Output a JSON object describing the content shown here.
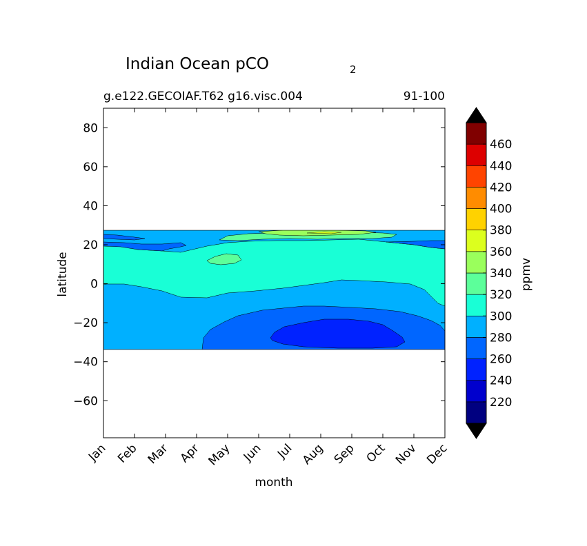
{
  "chart_data": {
    "type": "heatmap",
    "title_main": "Indian Ocean pCO",
    "title_sub": "2",
    "subtitle_left": "g.e122.GECOIAF.T62 g16.visc.004",
    "subtitle_right": "91-100",
    "xlabel": "month",
    "ylabel": "latitude",
    "x_categories": [
      "Jan",
      "Feb",
      "Mar",
      "Apr",
      "May",
      "Jun",
      "Jul",
      "Aug",
      "Sep",
      "Oct",
      "Nov",
      "Dec"
    ],
    "y_ticks": [
      80,
      60,
      40,
      20,
      0,
      -20,
      -40,
      -60
    ],
    "y_tick_labels": [
      "80",
      "60",
      "40",
      "20",
      "0",
      "−20",
      "−40",
      "−60"
    ],
    "ylim": [
      -79,
      90
    ],
    "data_lat_range": [
      -34,
      27
    ],
    "colorbar": {
      "label": "ppmv",
      "tick_values": [
        220,
        240,
        260,
        280,
        300,
        320,
        340,
        360,
        380,
        400,
        420,
        440,
        460
      ],
      "tick_labels": [
        "220",
        "240",
        "260",
        "280",
        "300",
        "320",
        "340",
        "360",
        "380",
        "400",
        "420",
        "440",
        "460"
      ],
      "bins": [
        {
          "lo": 200,
          "hi": 220,
          "color": "#000080"
        },
        {
          "lo": 220,
          "hi": 240,
          "color": "#0000cd"
        },
        {
          "lo": 240,
          "hi": 260,
          "color": "#0022ff"
        },
        {
          "lo": 260,
          "hi": 280,
          "color": "#0066ff"
        },
        {
          "lo": 280,
          "hi": 300,
          "color": "#00b0ff"
        },
        {
          "lo": 300,
          "hi": 320,
          "color": "#19ffd6"
        },
        {
          "lo": 320,
          "hi": 340,
          "color": "#5cff9a"
        },
        {
          "lo": 340,
          "hi": 360,
          "color": "#9aff5c"
        },
        {
          "lo": 360,
          "hi": 380,
          "color": "#dcff1e"
        },
        {
          "lo": 380,
          "hi": 400,
          "color": "#ffd200"
        },
        {
          "lo": 400,
          "hi": 420,
          "color": "#ff8c00"
        },
        {
          "lo": 420,
          "hi": 440,
          "color": "#ff4400"
        },
        {
          "lo": 440,
          "hi": 460,
          "color": "#dd0000"
        },
        {
          "lo": 460,
          "hi": 480,
          "color": "#800000"
        }
      ],
      "under_color": "#000000",
      "over_color": "#000000"
    },
    "contour_regions": [
      {
        "value_bin": "280-300",
        "color": "#00b0ff",
        "lat": [
          -34,
          27
        ],
        "months": [
          "Jan",
          "Dec"
        ]
      },
      {
        "value_bin": "260-280",
        "color": "#0066ff",
        "lat": [
          -34,
          -16
        ],
        "months": [
          "Apr",
          "Dec"
        ]
      },
      {
        "value_bin": "240-260",
        "color": "#0022ff",
        "lat": [
          -34,
          -19
        ],
        "months": [
          "Jul",
          "Oct"
        ]
      },
      {
        "value_bin": "300-320",
        "color": "#19ffd6",
        "lat": [
          -8,
          21
        ],
        "months": [
          "Jan",
          "Dec"
        ]
      },
      {
        "value_bin": "320-340",
        "color": "#5cff9a",
        "lat": [
          10,
          27
        ],
        "months": [
          "May",
          "Oct"
        ]
      },
      {
        "value_bin": "340-360",
        "color": "#9aff5c",
        "lat": [
          24,
          27
        ],
        "months": [
          "Jul",
          "Sep"
        ]
      }
    ]
  }
}
